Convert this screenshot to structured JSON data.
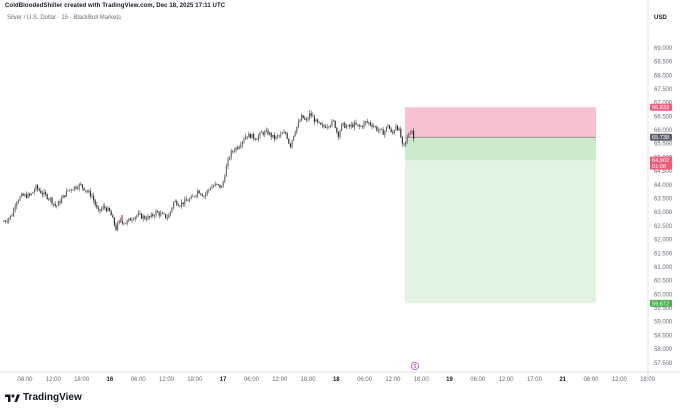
{
  "header": {
    "caption": "ColdBloodedShiller created with TradingView.com, Dec 18, 2025 17:11 UTC",
    "symbol": "Silver / U.S. Dollar · 15 · BlackBull Markets",
    "currency": "USD"
  },
  "branding": {
    "logo_text": "TradingView",
    "logo_icon": "tradingview-logo-icon"
  },
  "chart_data": {
    "type": "candlestick",
    "title": "Silver / U.S. Dollar · 15 · BlackBull Markets",
    "currency": "USD",
    "ylim": [
      57.2,
      69.8
    ],
    "y_ticks": [
      "57.500",
      "58.000",
      "58.500",
      "59.000",
      "59.500",
      "60.000",
      "60.500",
      "61.000",
      "61.500",
      "62.000",
      "62.500",
      "63.000",
      "63.500",
      "64.000",
      "64.500",
      "65.000",
      "65.500",
      "66.000",
      "66.500",
      "67.000",
      "67.500",
      "68.000",
      "68.500",
      "69.000"
    ],
    "x_ticks": [
      "08:00",
      "12:00",
      "18:00",
      "16",
      "06:00",
      "12:00",
      "18:00",
      "17",
      "06:00",
      "12:00",
      "18:00",
      "18",
      "06:00",
      "12:00",
      "18:00",
      "19",
      "06:00",
      "12:00",
      "17:00",
      "21",
      "06:00",
      "12:00",
      "18:00"
    ],
    "price_path": [
      [
        0,
        62.6
      ],
      [
        6,
        62.7
      ],
      [
        12,
        62.9
      ],
      [
        16,
        63.4
      ],
      [
        22,
        63.6
      ],
      [
        30,
        63.6
      ],
      [
        36,
        63.9
      ],
      [
        42,
        63.7
      ],
      [
        50,
        63.5
      ],
      [
        56,
        63.2
      ],
      [
        62,
        63.5
      ],
      [
        68,
        63.8
      ],
      [
        74,
        63.9
      ],
      [
        80,
        64.0
      ],
      [
        86,
        63.8
      ],
      [
        92,
        63.6
      ],
      [
        98,
        63.0
      ],
      [
        104,
        63.2
      ],
      [
        110,
        63.0
      ],
      [
        116,
        62.4
      ],
      [
        120,
        62.7
      ],
      [
        126,
        62.6
      ],
      [
        132,
        62.8
      ],
      [
        138,
        62.9
      ],
      [
        144,
        62.8
      ],
      [
        150,
        62.8
      ],
      [
        156,
        63.0
      ],
      [
        162,
        62.9
      ],
      [
        168,
        62.8
      ],
      [
        174,
        63.4
      ],
      [
        180,
        63.3
      ],
      [
        186,
        63.4
      ],
      [
        192,
        63.5
      ],
      [
        198,
        63.8
      ],
      [
        204,
        63.6
      ],
      [
        210,
        63.9
      ],
      [
        216,
        64.0
      ],
      [
        222,
        63.9
      ],
      [
        226,
        64.6
      ],
      [
        230,
        65.1
      ],
      [
        234,
        65.3
      ],
      [
        238,
        65.4
      ],
      [
        242,
        65.6
      ],
      [
        246,
        65.8
      ],
      [
        250,
        65.8
      ],
      [
        256,
        65.7
      ],
      [
        262,
        65.9
      ],
      [
        268,
        65.9
      ],
      [
        274,
        65.7
      ],
      [
        280,
        65.8
      ],
      [
        286,
        65.9
      ],
      [
        290,
        65.4
      ],
      [
        294,
        65.9
      ],
      [
        298,
        66.2
      ],
      [
        302,
        66.5
      ],
      [
        306,
        66.3
      ],
      [
        310,
        66.6
      ],
      [
        316,
        66.3
      ],
      [
        322,
        66.1
      ],
      [
        328,
        66.2
      ],
      [
        334,
        66.3
      ],
      [
        338,
        65.8
      ],
      [
        342,
        66.2
      ],
      [
        348,
        66.1
      ],
      [
        354,
        66.2
      ],
      [
        360,
        66.1
      ],
      [
        366,
        66.3
      ],
      [
        372,
        66.2
      ],
      [
        378,
        66.0
      ],
      [
        384,
        65.9
      ],
      [
        388,
        66.2
      ],
      [
        392,
        65.8
      ],
      [
        396,
        66.2
      ],
      [
        400,
        65.9
      ],
      [
        403,
        65.3
      ],
      [
        406,
        65.6
      ],
      [
        409,
        65.9
      ],
      [
        412,
        66.0
      ],
      [
        415,
        65.4
      ]
    ],
    "position": {
      "type": "long",
      "stop_loss_zone": [
        65.738,
        66.833
      ],
      "profit_zone": [
        59.672,
        65.738
      ],
      "filled_zone": [
        64.902,
        65.738
      ]
    },
    "price_labels": [
      {
        "text": "66.833",
        "value": 66.833,
        "color": "#ef5b7a",
        "text_color": "#ffffff"
      },
      {
        "text": "65.738",
        "value": 65.738,
        "color": "#5d606b",
        "text_color": "#ffffff"
      },
      {
        "text": "64.902",
        "sub": "01:08",
        "value": 64.902,
        "color": "#ef5b7a",
        "text_color": "#ffffff"
      },
      {
        "text": "59.672",
        "value": 59.672,
        "color": "#4caf50",
        "text_color": "#ffffff"
      }
    ],
    "colors": {
      "candles": "#4a4a4a",
      "stop_zone": "#f7c1d2",
      "profit_zone": "#e3f3e1",
      "profit_fill": "#cde8cb",
      "entry_line": "#787b86",
      "event_marker": "#b84bcf"
    },
    "event_marker_symbol": "$"
  }
}
